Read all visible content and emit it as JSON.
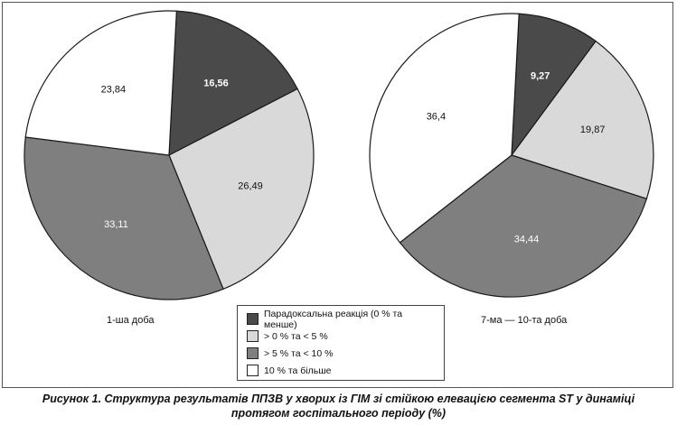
{
  "chart_data": [
    {
      "type": "pie",
      "title": "1-ша доба",
      "slices": [
        {
          "label": "Парадоксальна реакція (0 % та менше)",
          "value": 16.56,
          "text": "16,56",
          "color": "#4a4a4a"
        },
        {
          "label": "> 0 % та < 5 %",
          "value": 26.49,
          "text": "26,49",
          "color": "#d9d9d9"
        },
        {
          "label": "> 5 % та < 10 %",
          "value": 33.11,
          "text": "33,11",
          "color": "#7f7f7f"
        },
        {
          "label": "10 % та більше",
          "value": 23.84,
          "text": "23,84",
          "color": "#ffffff"
        }
      ]
    },
    {
      "type": "pie",
      "title": "7-ма — 10-та доба",
      "slices": [
        {
          "label": "Парадоксальна реакція (0 % та менше)",
          "value": 9.27,
          "text": "9,27",
          "color": "#4a4a4a"
        },
        {
          "label": "> 0 % та < 5 %",
          "value": 19.87,
          "text": "19,87",
          "color": "#d9d9d9"
        },
        {
          "label": "> 5 % та < 10 %",
          "value": 34.44,
          "text": "34,44",
          "color": "#7f7f7f"
        },
        {
          "label": "10 % та більше",
          "value": 36.4,
          "text": "36,4",
          "color": "#ffffff"
        }
      ]
    }
  ],
  "legend": {
    "items": [
      {
        "label": "Парадоксальна реакція (0 % та менше)",
        "color": "#4a4a4a"
      },
      {
        "label": "> 0 % та < 5 %",
        "color": "#d9d9d9"
      },
      {
        "label": "> 5 % та < 10 %",
        "color": "#7f7f7f"
      },
      {
        "label": "10 % та більше",
        "color": "#ffffff"
      }
    ]
  },
  "caption": {
    "line1": "Рисунок 1. Структура результатів ППЗВ у хворих із ГІМ зі стійкою елевацією сегмента ST у динаміці",
    "line2": "протягом госпітального періоду (%)"
  }
}
